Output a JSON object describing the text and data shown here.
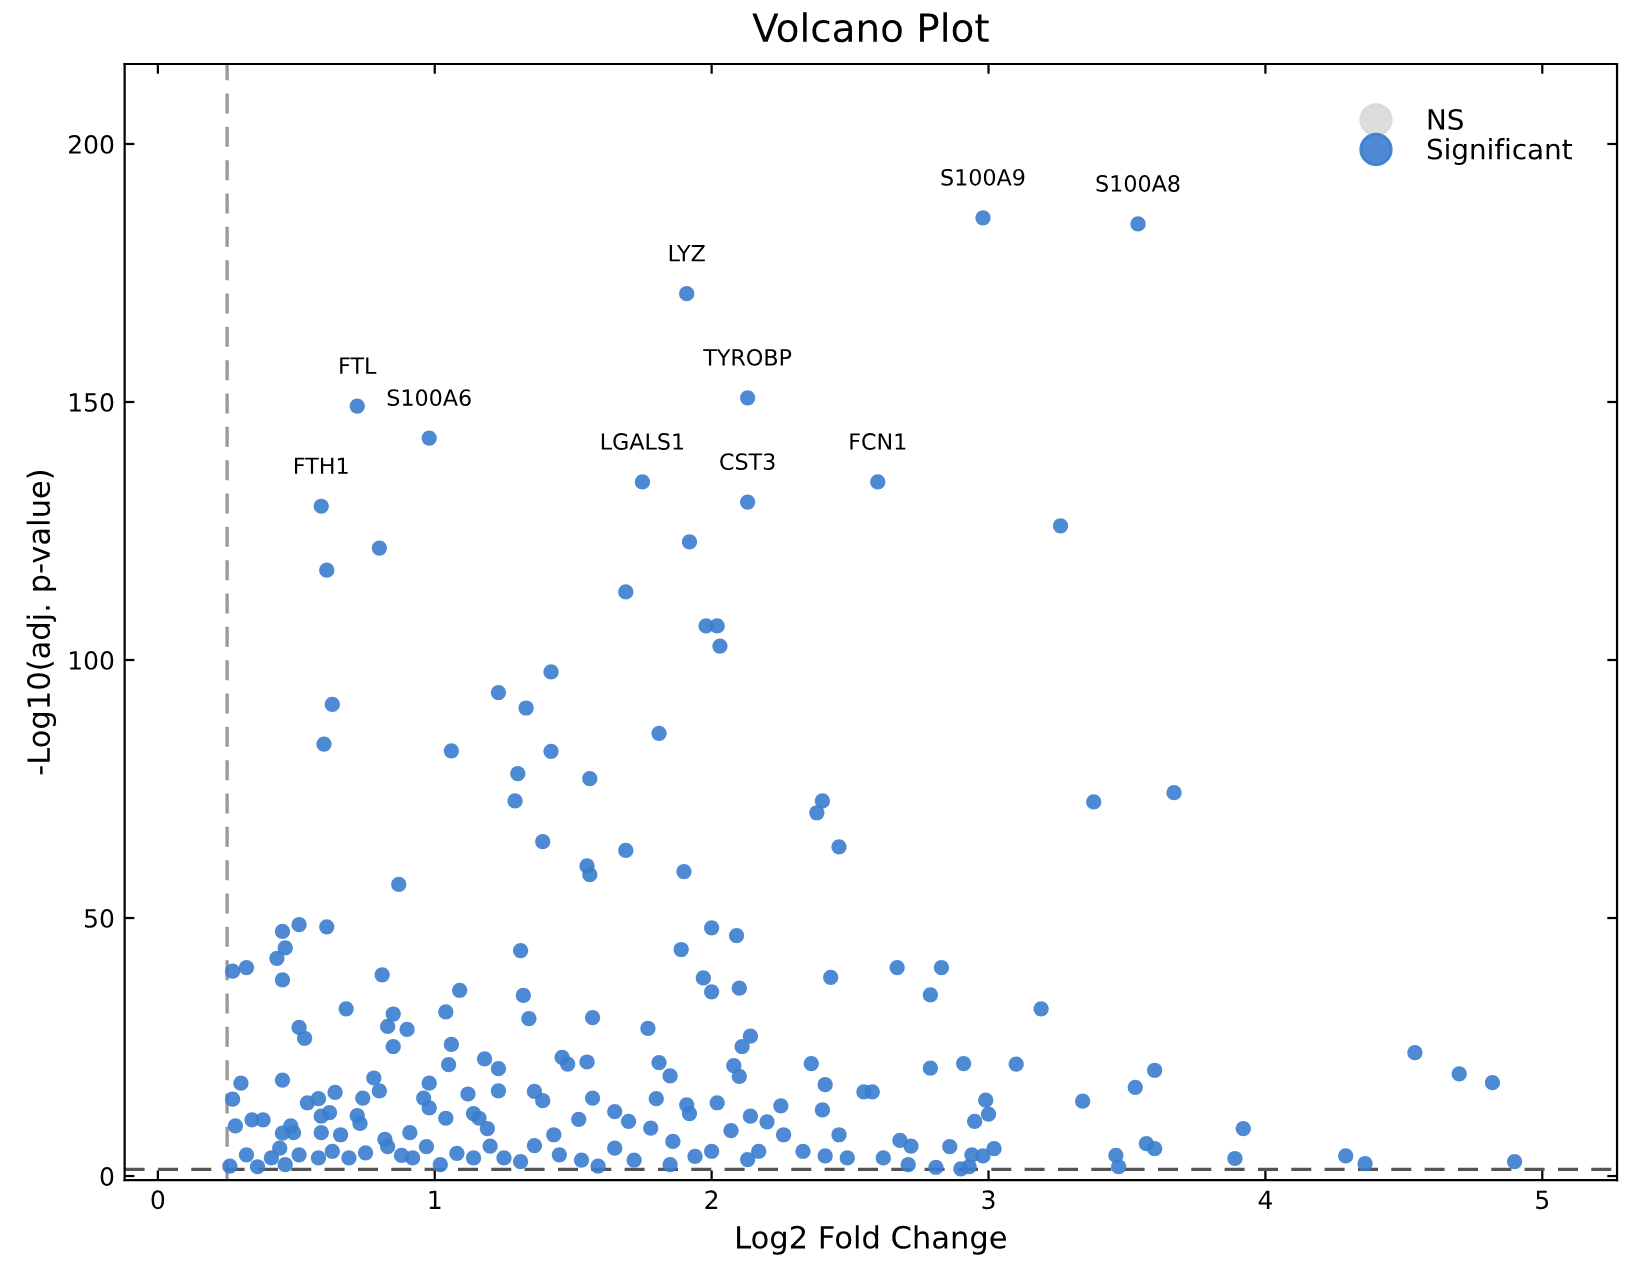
{
  "chart_data": {
    "type": "scatter",
    "title": "Volcano Plot",
    "xlabel": "Log2 Fold Change",
    "ylabel": "-Log10(adj. p-value)",
    "xlim": [
      -0.12,
      5.27
    ],
    "ylim": [
      -0.8,
      215.5
    ],
    "xticks": [
      0,
      1,
      2,
      3,
      4,
      5
    ],
    "yticks": [
      0,
      50,
      100,
      150,
      200
    ],
    "grid": false,
    "legend": "top right",
    "marker": "circle",
    "ref_lines": [
      {
        "axis": "x",
        "value": 0.25,
        "label": null,
        "color": "#999999",
        "line_style": "dashed"
      },
      {
        "axis": "y",
        "value": 1.3,
        "label": null,
        "color": "#555555",
        "line_style": "dashed"
      }
    ],
    "annotations": [
      {
        "text": "S100A9",
        "x": 2.98,
        "y": 185.7
      },
      {
        "text": "S100A8",
        "x": 3.54,
        "y": 184.5
      },
      {
        "text": "LYZ",
        "x": 1.91,
        "y": 171
      },
      {
        "text": "TYROBP",
        "x": 2.13,
        "y": 150.8
      },
      {
        "text": "FTL",
        "x": 0.72,
        "y": 149.2
      },
      {
        "text": "S100A6",
        "x": 0.98,
        "y": 143
      },
      {
        "text": "FTH1",
        "x": 0.59,
        "y": 129.8
      },
      {
        "text": "LGALS1",
        "x": 1.75,
        "y": 134.5
      },
      {
        "text": "CST3",
        "x": 2.13,
        "y": 130.6
      },
      {
        "text": "FCN1",
        "x": 2.6,
        "y": 134.5
      }
    ],
    "series": [
      {
        "name": "NS",
        "color": "#d9d9d9"
      },
      {
        "name": "Significant",
        "color": "#3a7dce",
        "x": [
          2.98,
          3.54,
          1.91,
          2.13,
          0.72,
          0.98,
          0.59,
          1.75,
          2.13,
          2.6,
          3.26,
          1.92,
          0.8,
          0.61,
          1.69,
          1.98,
          2.02,
          2.03,
          1.42,
          1.23,
          0.63,
          1.33,
          0.6,
          1.06,
          1.42,
          1.81,
          1.56,
          1.3,
          1.29,
          1.39,
          1.69,
          1.55,
          1.56,
          1.9,
          0.87,
          2.67,
          2.83,
          2.79,
          3.19,
          3.38,
          3.67,
          2.38,
          2.4,
          2.46,
          2.0,
          2.09,
          1.89,
          1.31,
          2.43,
          1.97,
          2.0,
          2.1,
          0.27,
          0.32,
          0.45,
          0.46,
          0.43,
          0.51,
          0.61,
          0.45,
          0.81,
          1.09,
          1.04,
          1.32,
          1.34,
          1.57,
          0.68,
          0.51,
          0.53,
          0.85,
          0.83,
          0.85,
          0.9,
          1.06,
          1.77,
          1.18,
          1.23,
          1.46,
          1.48,
          1.55,
          1.81,
          1.85,
          2.08,
          2.11,
          2.14,
          2.1,
          2.36,
          2.41,
          2.55,
          2.58,
          2.79,
          2.91,
          3.1,
          2.99,
          3.0,
          2.95,
          3.34,
          3.53,
          3.6,
          4.54,
          4.7,
          4.82,
          3.92,
          3.89,
          4.29,
          4.36,
          4.9,
          3.46,
          3.47,
          3.57,
          3.6,
          2.86,
          2.68,
          2.72,
          2.94,
          2.98,
          3.02,
          2.62,
          2.71,
          2.81,
          2.9,
          2.93,
          0.27,
          0.3,
          0.28,
          0.34,
          0.38,
          0.45,
          0.48,
          0.49,
          0.54,
          0.58,
          0.64,
          0.74,
          0.78,
          0.8,
          0.73,
          0.59,
          0.66,
          0.82,
          0.91,
          0.96,
          0.98,
          1.04,
          1.05,
          1.12,
          1.14,
          1.19,
          1.23,
          1.36,
          1.39,
          1.43,
          1.52,
          1.57,
          1.65,
          1.7,
          1.78,
          1.8,
          1.86,
          1.91,
          1.92,
          2.02,
          2.07,
          2.14,
          2.2,
          2.25,
          2.26,
          2.33,
          2.4,
          2.46,
          2.41,
          2.49,
          2.13,
          2.17,
          2.0,
          1.94,
          1.85,
          1.72,
          1.65,
          1.59,
          1.53,
          1.45,
          1.36,
          1.31,
          1.25,
          1.2,
          1.14,
          1.08,
          1.02,
          0.97,
          0.92,
          0.88,
          0.83,
          0.75,
          0.69,
          0.63,
          0.58,
          0.51,
          0.46,
          0.41,
          0.36,
          0.32,
          0.26,
          0.44,
          0.59,
          0.45,
          0.62,
          0.72,
          0.98,
          1.16
        ],
        "values": [
          185.7,
          184.5,
          171,
          150.8,
          149.2,
          143,
          129.8,
          134.5,
          130.6,
          134.5,
          126,
          122.9,
          121.7,
          117.4,
          113.2,
          106.6,
          106.6,
          102.7,
          97.7,
          93.7,
          91.4,
          90.7,
          83.7,
          82.4,
          82.3,
          85.8,
          77.0,
          78.0,
          72.7,
          64.8,
          63.1,
          60.1,
          58.4,
          59.0,
          56.5,
          40.4,
          40.4,
          35.1,
          32.4,
          72.5,
          74.3,
          70.4,
          72.7,
          63.8,
          48.1,
          46.6,
          43.9,
          43.7,
          38.5,
          38.4,
          35.7,
          36.4,
          39.7,
          40.4,
          47.4,
          44.2,
          42.2,
          48.7,
          48.3,
          38.0,
          39.0,
          36.0,
          31.8,
          35.0,
          30.5,
          30.7,
          32.4,
          28.8,
          26.7,
          31.4,
          29.0,
          25.1,
          28.4,
          25.5,
          28.6,
          22.7,
          20.8,
          23.0,
          21.7,
          22.1,
          22.0,
          19.4,
          21.4,
          25.1,
          27.1,
          19.3,
          21.8,
          17.7,
          16.3,
          16.3,
          20.9,
          21.8,
          21.7,
          14.7,
          12.0,
          10.6,
          14.5,
          17.2,
          20.5,
          23.9,
          19.8,
          18.1,
          9.2,
          3.4,
          3.9,
          2.4,
          2.8,
          4.0,
          1.8,
          6.3,
          5.3,
          5.7,
          6.9,
          5.8,
          4.1,
          3.9,
          5.3,
          3.5,
          2.2,
          1.7,
          1.4,
          1.8,
          14.9,
          18.0,
          9.7,
          10.9,
          10.9,
          18.6,
          9.7,
          8.4,
          14.2,
          15.0,
          16.2,
          15.1,
          19.0,
          16.5,
          10.2,
          8.4,
          8.0,
          7.1,
          8.4,
          15.1,
          18.0,
          11.2,
          21.6,
          15.9,
          12.1,
          9.2,
          16.5,
          16.4,
          14.6,
          8.0,
          11.0,
          15.1,
          12.5,
          10.6,
          9.3,
          15.0,
          6.7,
          13.8,
          12.1,
          14.2,
          8.8,
          11.6,
          10.5,
          13.6,
          8.0,
          4.8,
          12.8,
          8.0,
          3.9,
          3.5,
          3.2,
          4.8,
          4.8,
          3.8,
          2.2,
          3.1,
          5.4,
          1.9,
          3.1,
          4.1,
          5.9,
          2.8,
          3.5,
          5.8,
          3.5,
          4.4,
          2.2,
          5.7,
          3.5,
          4.0,
          5.7,
          4.5,
          3.5,
          4.8,
          3.5,
          4.1,
          2.2,
          3.5,
          1.8,
          4.1,
          1.9,
          5.4,
          11.6,
          8.3,
          12.3,
          11.7,
          13.2,
          11.2
        ]
      }
    ]
  }
}
